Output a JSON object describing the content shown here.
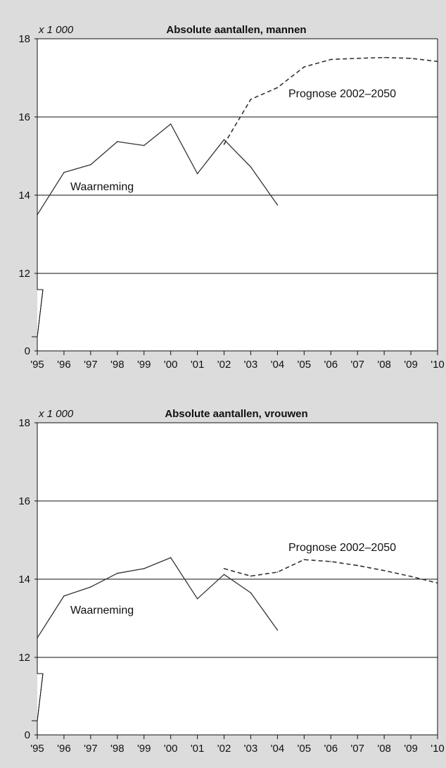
{
  "chart_data": [
    {
      "type": "line",
      "title": "Absolute aantallen, mannen",
      "unit_label": "x 1 000",
      "x": [
        "'95",
        "'96",
        "'97",
        "'98",
        "'99",
        "'00",
        "'01",
        "'02",
        "'03",
        "'04",
        "'05",
        "'06",
        "'07",
        "'08",
        "'09",
        "'10"
      ],
      "yticks": [
        0,
        12,
        14,
        16,
        18
      ],
      "ylim": [
        0,
        18
      ],
      "axis_break": true,
      "grid": true,
      "series": [
        {
          "name": "Waarneming",
          "style": "solid",
          "values": [
            13.5,
            14.58,
            14.78,
            15.37,
            15.27,
            15.82,
            14.55,
            15.42,
            14.72,
            13.75,
            null,
            null,
            null,
            null,
            null,
            null
          ]
        },
        {
          "name": "Prognose 2002–2050",
          "style": "dashed",
          "values": [
            null,
            null,
            null,
            null,
            null,
            null,
            null,
            15.3,
            16.45,
            16.75,
            17.28,
            17.47,
            17.5,
            17.52,
            17.5,
            17.42
          ]
        }
      ]
    },
    {
      "type": "line",
      "title": "Absolute aantallen, vrouwen",
      "unit_label": "x 1 000",
      "x": [
        "'95",
        "'96",
        "'97",
        "'98",
        "'99",
        "'00",
        "'01",
        "'02",
        "'03",
        "'04",
        "'05",
        "'06",
        "'07",
        "'08",
        "'09",
        "'10"
      ],
      "yticks": [
        0,
        12,
        14,
        16,
        18
      ],
      "ylim": [
        0,
        18
      ],
      "axis_break": true,
      "grid": true,
      "series": [
        {
          "name": "Waarneming",
          "style": "solid",
          "values": [
            12.5,
            13.57,
            13.8,
            14.15,
            14.27,
            14.55,
            13.5,
            14.12,
            13.65,
            12.7,
            null,
            null,
            null,
            null,
            null,
            null
          ]
        },
        {
          "name": "Prognose 2002–2050",
          "style": "dashed",
          "values": [
            null,
            null,
            null,
            null,
            null,
            null,
            null,
            14.27,
            14.08,
            14.18,
            14.5,
            14.45,
            14.35,
            14.22,
            14.07,
            13.9
          ]
        }
      ]
    }
  ]
}
